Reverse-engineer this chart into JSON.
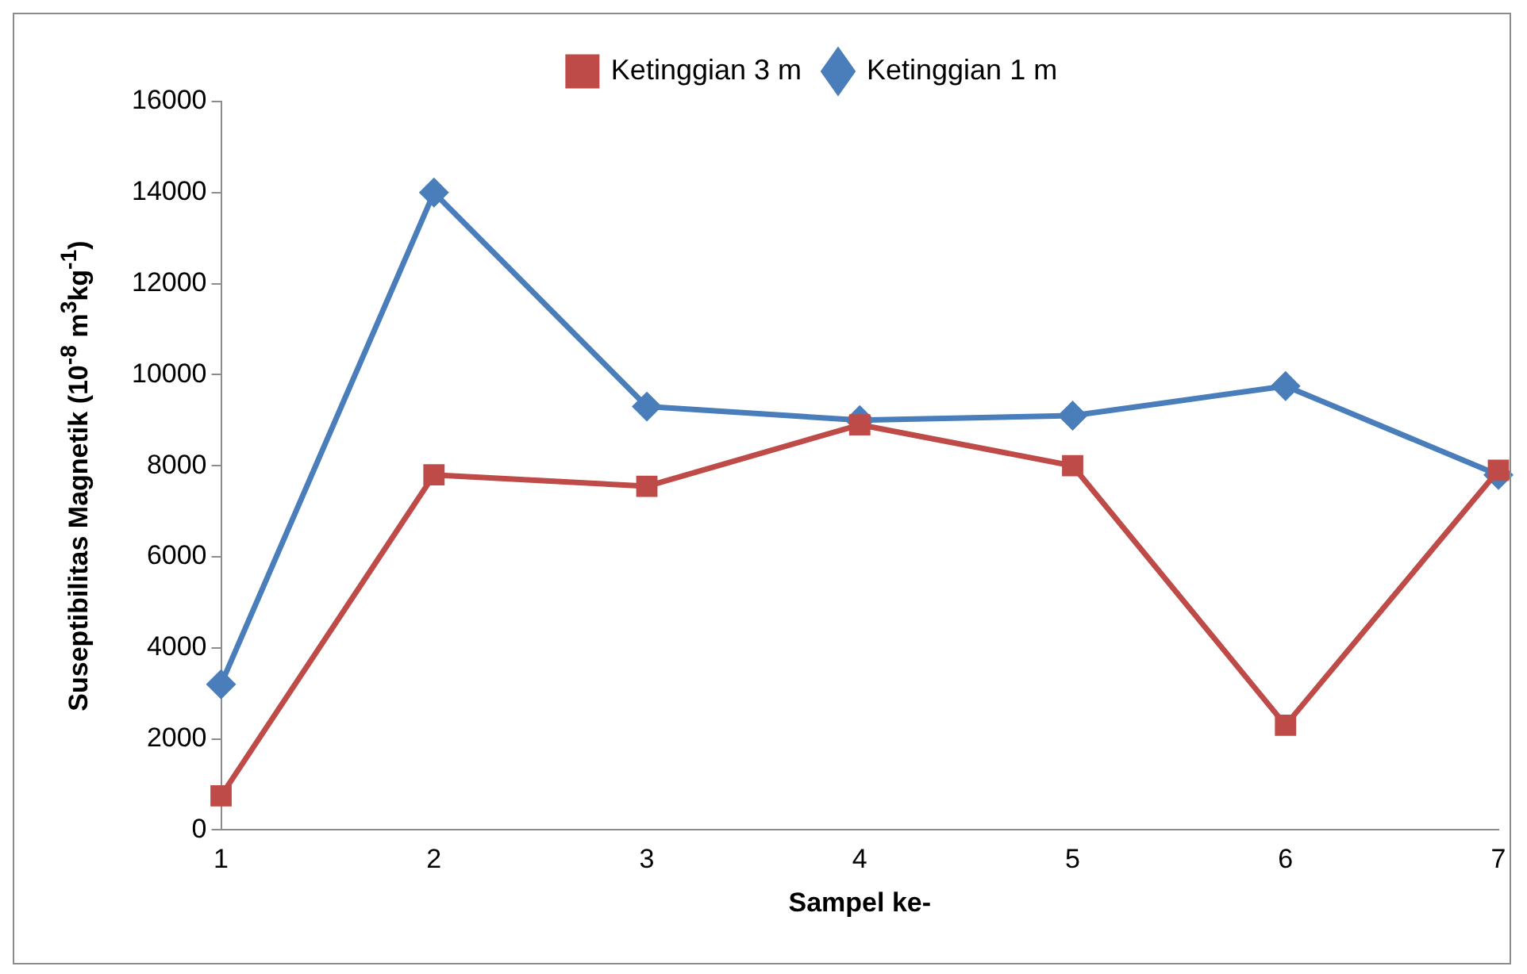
{
  "chart_data": {
    "type": "line",
    "xlabel": "Sampel ke-",
    "ylabel": "Suseptibilitas Magnetik (10$^{-8}$ m$^{3}$kg$^{-1}$)",
    "categories": [
      "1",
      "2",
      "3",
      "4",
      "5",
      "6",
      "7"
    ],
    "series": [
      {
        "name": "Ketinggian 1 m",
        "color": "#4a7ebb",
        "marker": "diamond",
        "values": [
          3200,
          14000,
          9300,
          9000,
          9100,
          9750,
          7800
        ]
      },
      {
        "name": "Ketinggian 3 m",
        "color": "#be4b48",
        "marker": "square",
        "values": [
          750,
          7800,
          7550,
          8900,
          8000,
          2300,
          7900
        ]
      }
    ],
    "ylim": [
      0,
      16000
    ],
    "yticks": [
      0,
      2000,
      4000,
      6000,
      8000,
      10000,
      12000,
      14000,
      16000
    ],
    "grid": false,
    "legend": "top",
    "line_style": "solid"
  }
}
